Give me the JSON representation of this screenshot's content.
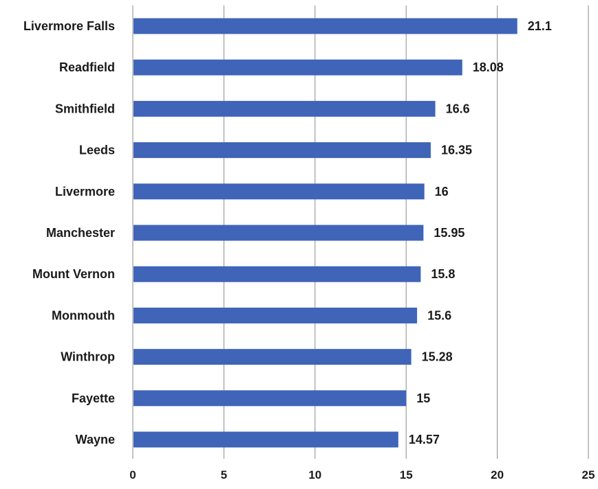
{
  "chart_data": {
    "type": "bar",
    "orientation": "horizontal",
    "title": "",
    "xlabel": "",
    "ylabel": "",
    "categories": [
      "Livermore Falls",
      "Readfield",
      "Smithfield",
      "Leeds",
      "Livermore",
      "Manchester",
      "Mount Vernon",
      "Monmouth",
      "Winthrop",
      "Fayette",
      "Wayne"
    ],
    "values": [
      21.1,
      18.08,
      16.6,
      16.35,
      16,
      15.95,
      15.8,
      15.6,
      15.28,
      15,
      14.57
    ],
    "data_labels": [
      "21.1",
      "18.08",
      "16.6",
      "16.35",
      "16",
      "15.95",
      "15.8",
      "15.6",
      "15.28",
      "15",
      "14.57"
    ],
    "xlim": [
      0,
      25
    ],
    "x_ticks": [
      "0",
      "5",
      "10",
      "15",
      "20",
      "25"
    ],
    "grid": "vertical",
    "legend": "none",
    "colors": {
      "bar": "#3f64b8",
      "grid": "#8a8a8a",
      "text": "#1a1a1a"
    }
  }
}
